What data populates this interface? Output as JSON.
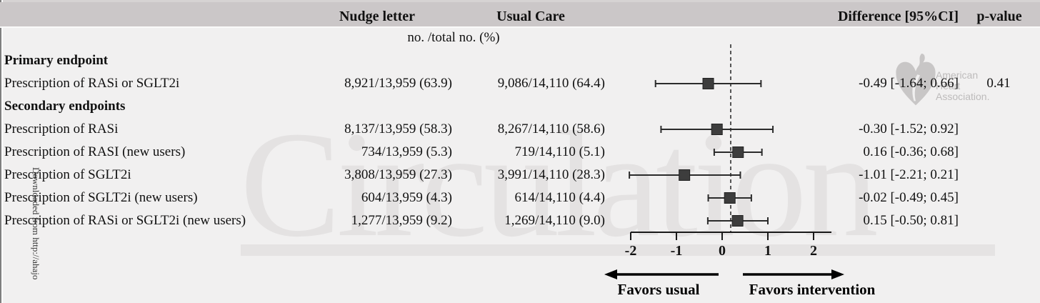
{
  "header": {
    "col_nudge": "Nudge letter",
    "col_usual": "Usual Care",
    "col_diff": "Difference [95%CI]",
    "col_p": "p-value",
    "subheader": "no. /total no. (%)"
  },
  "watermark": {
    "journal": "Circulation",
    "downloaded": "Downloaded from http://ahajo",
    "aha_line1": "American",
    "aha_line2": "Heart",
    "aha_line3": "Association."
  },
  "colors": {
    "background": "#f1f0f0",
    "header_bar": "#cbc7c8",
    "marker": "#3d3d3d",
    "whisker": "#2b2b2b",
    "reference_line": "#555555",
    "watermark_gray": "#e4e2e2"
  },
  "chart_data": {
    "type": "forest",
    "x_tick_labels": [
      "-2",
      "-1",
      "0",
      "1",
      "2"
    ],
    "x_ticks": [
      -2,
      -1,
      0,
      1,
      2
    ],
    "reference_x": 0,
    "favors_left": "Favors usual",
    "favors_right": "Favors intervention",
    "groups": [
      {
        "label": "Primary endpoint",
        "rows": [
          {
            "label": "Prescription of RASi or SGLT2i",
            "nudge": "8,921/13,959 (63.9)",
            "usual": "9,086/14,110 (64.4)",
            "diff_label": "-0.49 [-1.64; 0.66]",
            "p": "0.41",
            "est": -0.49,
            "lo": -1.64,
            "hi": 0.66
          }
        ]
      },
      {
        "label": "Secondary endpoints",
        "rows": [
          {
            "label": "Prescription of RASi",
            "nudge": "8,137/13,959 (58.3)",
            "usual": "8,267/14,110 (58.6)",
            "diff_label": "-0.30 [-1.52; 0.92]",
            "p": "",
            "est": -0.3,
            "lo": -1.52,
            "hi": 0.92
          },
          {
            "label": "Prescription of RASI (new users)",
            "nudge": "734/13,959 (5.3)",
            "usual": "719/14,110 (5.1)",
            "diff_label": "0.16 [-0.36; 0.68]",
            "p": "",
            "est": 0.16,
            "lo": -0.36,
            "hi": 0.68
          },
          {
            "label": "Prescription of SGLT2i",
            "nudge": "3,808/13,959 (27.3)",
            "usual": "3,991/14,110 (28.3)",
            "diff_label": "-1.01 [-2.21; 0.21]",
            "p": "",
            "est": -1.01,
            "lo": -2.21,
            "hi": 0.21
          },
          {
            "label": "Prescription of SGLT2i (new users)",
            "nudge": "604/13,959 (4.3)",
            "usual": "614/14,110 (4.4)",
            "diff_label": "-0.02 [-0.49; 0.45]",
            "p": "",
            "est": -0.02,
            "lo": -0.49,
            "hi": 0.45
          },
          {
            "label": "Prescription of RASi or SGLT2i (new users)",
            "nudge": "1,277/13,959 (9.2)",
            "usual": "1,269/14,110 (9.0)",
            "diff_label": "0.15 [-0.50; 0.81]",
            "p": "",
            "est": 0.15,
            "lo": -0.5,
            "hi": 0.81
          }
        ]
      }
    ]
  }
}
